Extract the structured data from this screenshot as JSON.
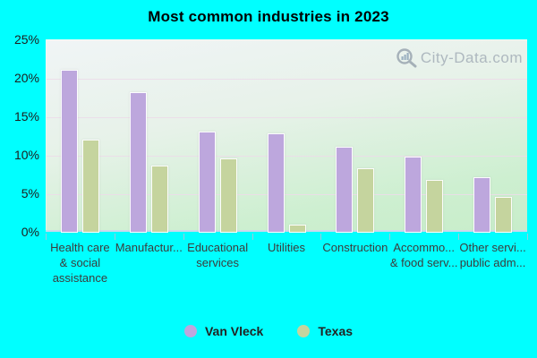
{
  "title": "Most common industries in 2023",
  "watermark": {
    "text": "City-Data.com"
  },
  "colors": {
    "background": "#00ffff",
    "van_vleck_bar": "#bda7dd",
    "texas_bar": "#c5d49e",
    "plot_top": "#f0f4f6",
    "plot_bottom": "#c8edca",
    "gridline": "#ecdbe9",
    "axis_line": "#ccd9ec",
    "tick": "#a5c6dc",
    "watermark_text": "#a4aeb8"
  },
  "chart_data": {
    "type": "bar",
    "title": "Most common industries in 2023",
    "categories": [
      "Health care & social assistance",
      "Manufactur...",
      "Educational services",
      "Utilities",
      "Construction",
      "Accommo... & food serv...",
      "Other servi... public adm..."
    ],
    "category_label_lines": [
      [
        "Health care",
        "& social",
        "assistance"
      ],
      [
        "Manufactur..."
      ],
      [
        "Educational",
        "services"
      ],
      [
        "Utilities"
      ],
      [
        "Construction"
      ],
      [
        "Accommo...",
        "& food serv..."
      ],
      [
        "Other servi...",
        "public adm..."
      ]
    ],
    "series": [
      {
        "name": "Van Vleck",
        "color": "#bda7dd",
        "values": [
          21.2,
          18.2,
          13.1,
          12.9,
          11.2,
          9.9,
          7.2
        ]
      },
      {
        "name": "Texas",
        "color": "#c5d49e",
        "values": [
          12.1,
          8.7,
          9.7,
          1.0,
          8.4,
          6.9,
          4.7
        ]
      }
    ],
    "xlabel": "",
    "ylabel": "",
    "ylim": [
      0,
      25
    ],
    "yticks": [
      "25%",
      "20%",
      "15%",
      "10%",
      "5%",
      "0%"
    ],
    "grid": true,
    "legend_position": "bottom"
  }
}
